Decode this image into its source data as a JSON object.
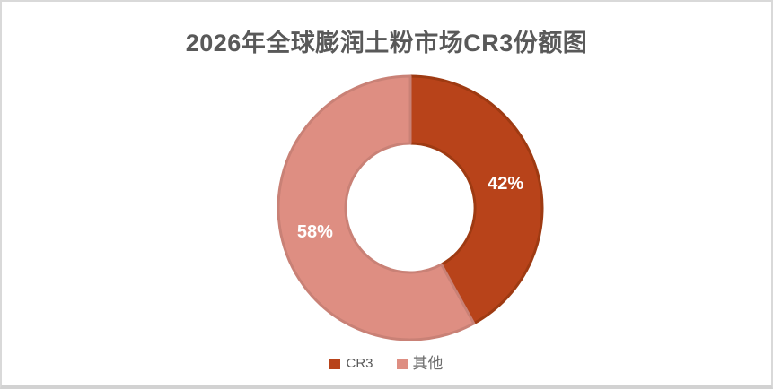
{
  "card": {
    "border_color": "#d9d9d9",
    "background": "#ffffff"
  },
  "chart_data": {
    "type": "pie",
    "subtype": "donut",
    "title": "2026年全球膨润土粉市场CR3份额图",
    "title_color": "#595959",
    "series": [
      {
        "name": "CR3",
        "value": 42,
        "label": "42%",
        "color": "#b8431a",
        "border_color": "#9e3a12"
      },
      {
        "name": "其他",
        "value": 58,
        "label": "58%",
        "color": "#de8e82",
        "border_color": "#c98176"
      }
    ],
    "start_angle_deg": 0,
    "direction": "clockwise",
    "donut_hole_ratio": 0.49,
    "data_labels": "percent-inside-ring",
    "data_label_color": "#ffffff",
    "legend_position": "bottom",
    "legend_text_color": "#595959",
    "grid": false
  }
}
